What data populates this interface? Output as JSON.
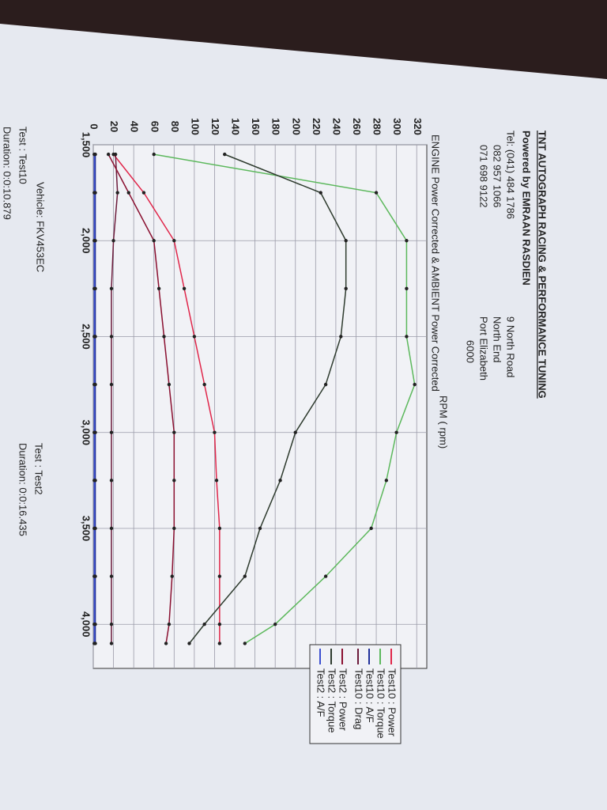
{
  "header": {
    "title": "TNT AUTOGRAPH RACING & PERFORMANCE TUNING",
    "powered": "Powered by EMRAAN RASDIEN",
    "phones": [
      "Tel: (041) 484 1786",
      "082 957 1066",
      "071 698 9122"
    ],
    "address": [
      "9 North Road",
      "North End",
      "Port Elizabeth",
      "6000"
    ]
  },
  "footer": {
    "vehicle": "Vehicle: FKV453EC",
    "test1": "Test   : Test10",
    "duration1": "Duration: 0:0:10.879",
    "test2": "Test   : Test2",
    "duration2": "Duration: 0:0:16.435"
  },
  "chart_data": {
    "type": "line",
    "title": "ENGINE Power Corrected & AMBIENT Power Corrected",
    "x_label": "RPM ( rpm)",
    "x": [
      1550,
      1750,
      2000,
      2250,
      2500,
      2750,
      3000,
      3250,
      3500,
      3750,
      4000,
      4100
    ],
    "xlim": [
      1500,
      4230
    ],
    "xticks": [
      {
        "value": 1500,
        "label": "1,500"
      },
      {
        "value": 2000,
        "label": "2,000"
      },
      {
        "value": 2500,
        "label": "2,500"
      },
      {
        "value": 3000,
        "label": "3,000"
      },
      {
        "value": 3500,
        "label": "3,500"
      },
      {
        "value": 4000,
        "label": "4,000"
      }
    ],
    "ylim": [
      0,
      330
    ],
    "yticks": [
      0,
      20,
      40,
      60,
      80,
      100,
      120,
      140,
      160,
      180,
      200,
      220,
      240,
      260,
      280,
      300,
      320
    ],
    "grid": true,
    "series": [
      {
        "name": "Test10 : Power",
        "color": "#e0264a",
        "values": [
          20,
          50,
          80,
          90,
          100,
          110,
          120,
          122,
          125,
          125,
          125,
          125
        ]
      },
      {
        "name": "Test10 : Torque",
        "color": "#5cb85c",
        "values": [
          60,
          280,
          310,
          310,
          310,
          318,
          300,
          290,
          275,
          230,
          180,
          150
        ]
      },
      {
        "name": "Test10 : A/F",
        "color": "#1f2f9a",
        "values": [
          2,
          2,
          2,
          2,
          2,
          2,
          2,
          2,
          2,
          2,
          2,
          2
        ]
      },
      {
        "name": "Test10 : Drag",
        "color": "#6b1a3a",
        "values": [
          22,
          24,
          20,
          18,
          18,
          18,
          18,
          18,
          18,
          18,
          18,
          18
        ]
      },
      {
        "name": "Test2 : Power",
        "color": "#8a1030",
        "values": [
          15,
          35,
          60,
          65,
          70,
          75,
          80,
          80,
          80,
          78,
          75,
          72
        ]
      },
      {
        "name": "Test2 : Torque",
        "color": "#2e3b2e",
        "values": [
          130,
          225,
          250,
          250,
          245,
          230,
          200,
          185,
          165,
          150,
          110,
          95
        ]
      },
      {
        "name": "Test2 : A/F",
        "color": "#3b4fd0",
        "values": [
          1,
          1,
          1,
          1,
          1,
          1,
          1,
          1,
          1,
          1,
          1,
          1
        ]
      }
    ]
  }
}
